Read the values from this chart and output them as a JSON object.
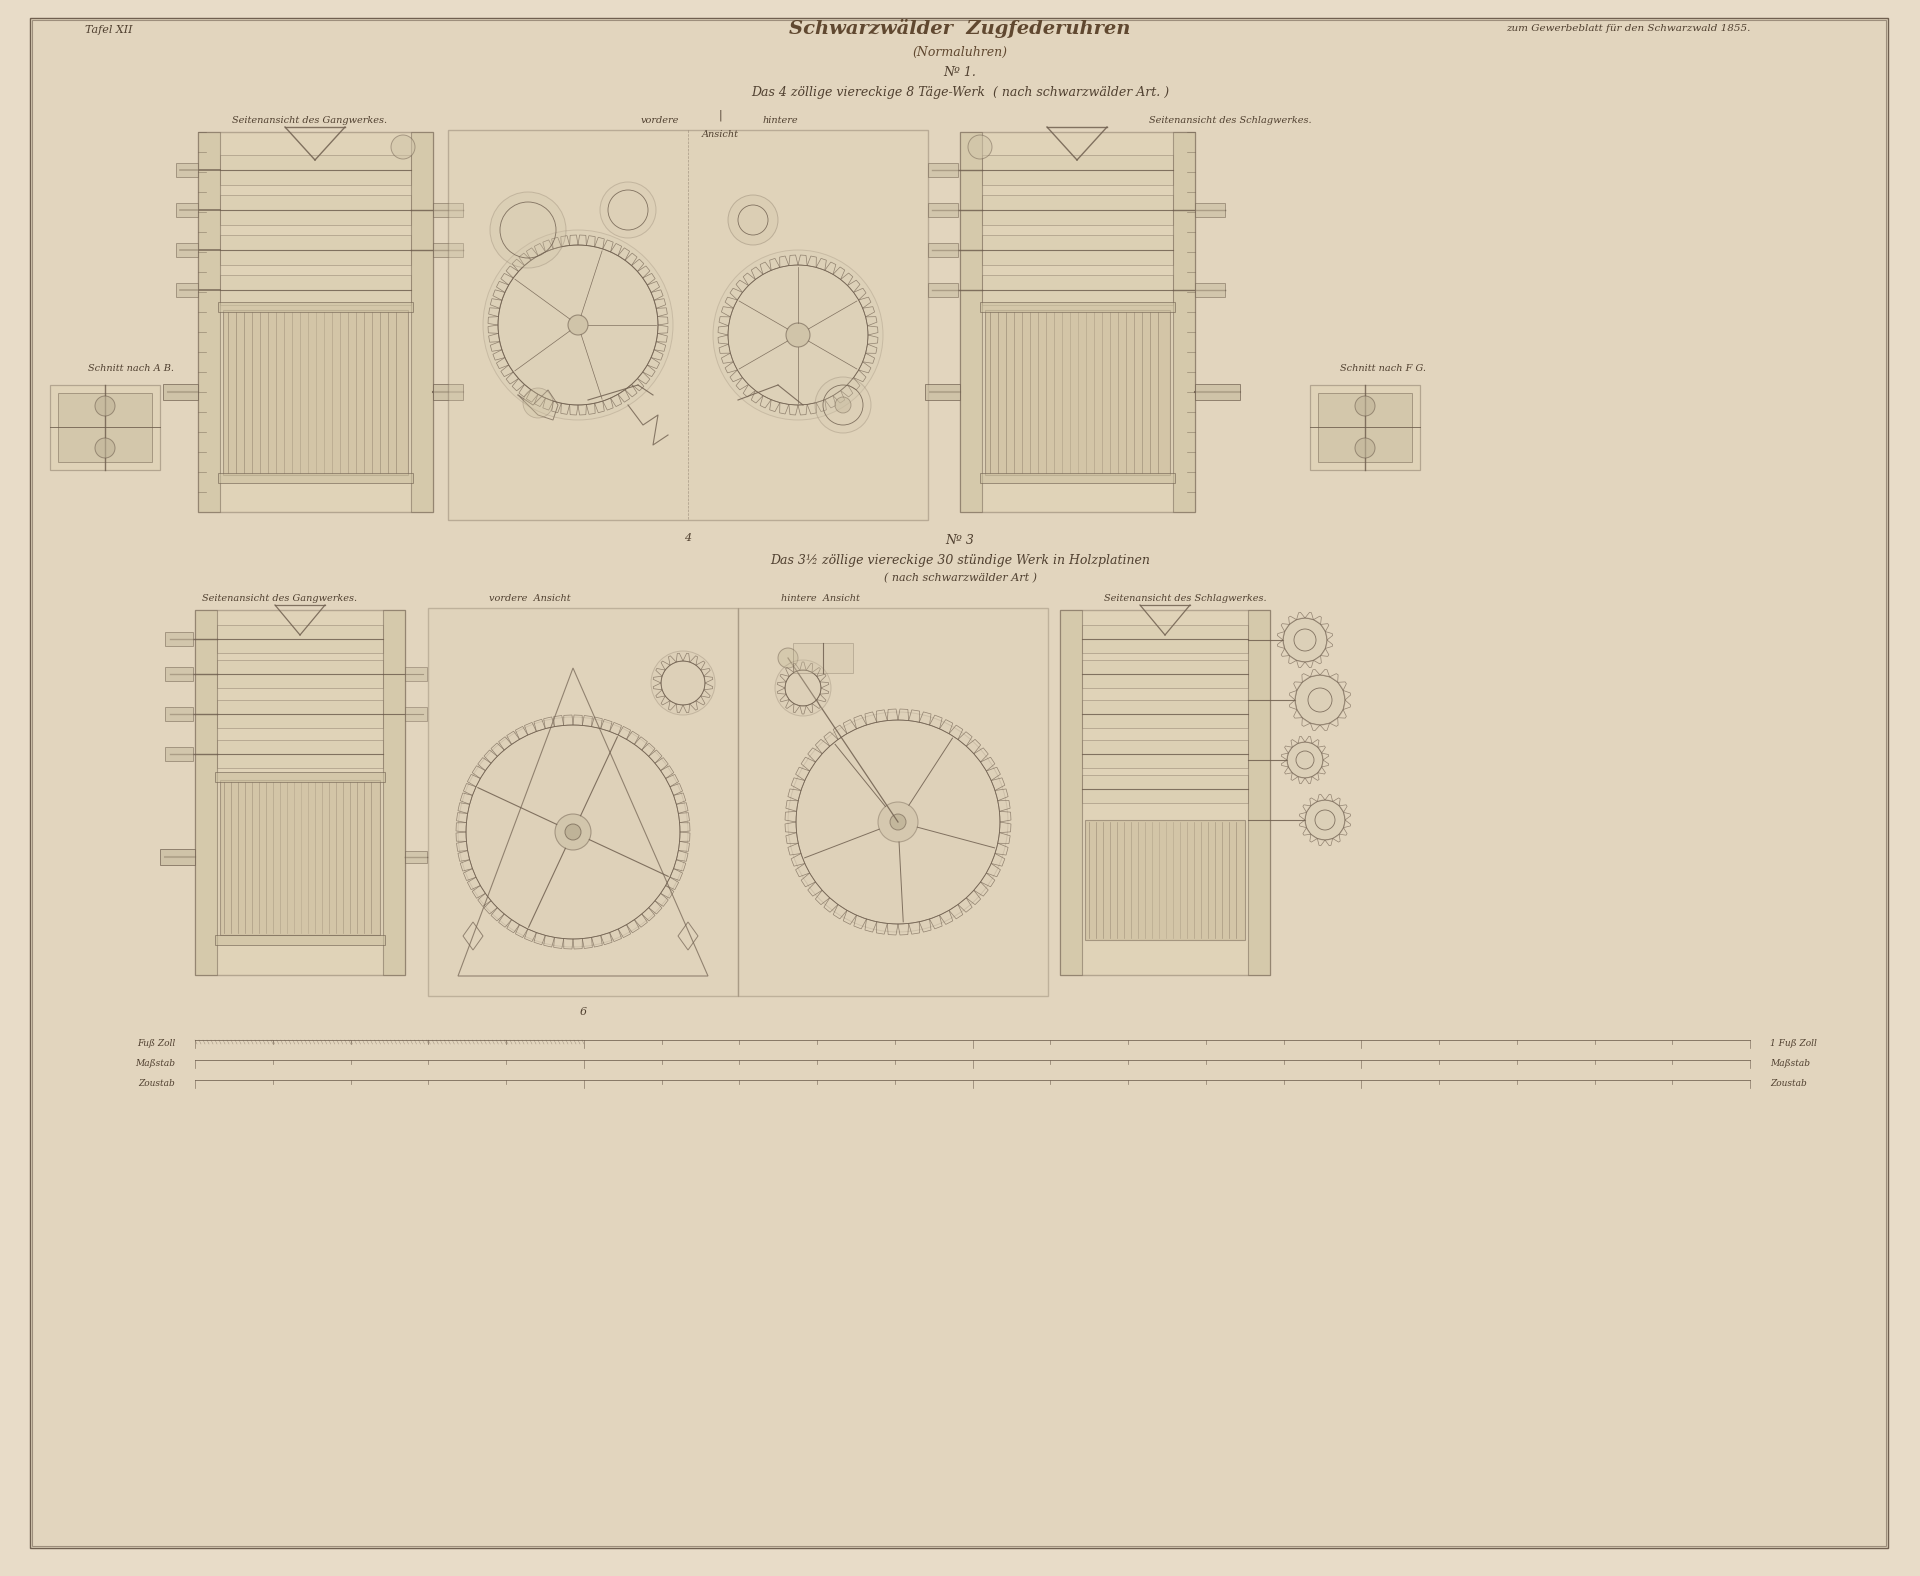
{
  "bg_color": "#e8dcc8",
  "page_color": "#e2d5be",
  "line_color": "#706050",
  "text_color": "#504030",
  "title_main": "Schwarzwälder  Zugfederuhren",
  "title_sub": "(Normaluhren)",
  "title_num1": "Nº 1.",
  "title_sub1": "Das 4 zöllige viereckige 8 Täge-Werk  ( nach schwarzwälder Art. )",
  "title_num2": "Nº 3",
  "title_sub2": "Das 3½ zöllige viereckige 30 stündige Werk in Holzplatinen",
  "title_sub2b": "( nach schwarzwälder Art )",
  "tafel": "Tafel XII",
  "gewerbeblatt": "zum Gewerbeblatt für den Schwarzwald 1855.",
  "schnitt_ab": "Schnitt nach A B.",
  "schnitt_fg": "Schnitt nach F G.",
  "label_top_left": "Seitenansicht des Gangwerkes.",
  "label_top_cv": "vordere",
  "label_top_ch": "hintere",
  "label_top_cans": "Ansicht",
  "label_top_right": "Seitenansicht des Schlagwerkes.",
  "label_bot_left": "Seitenansicht des Gangwerkes.",
  "label_bot_cl": "vordere  Ansicht",
  "label_bot_cr": "hintere  Ansicht",
  "label_bot_right": "Seitenansicht des Schlagwerkes."
}
